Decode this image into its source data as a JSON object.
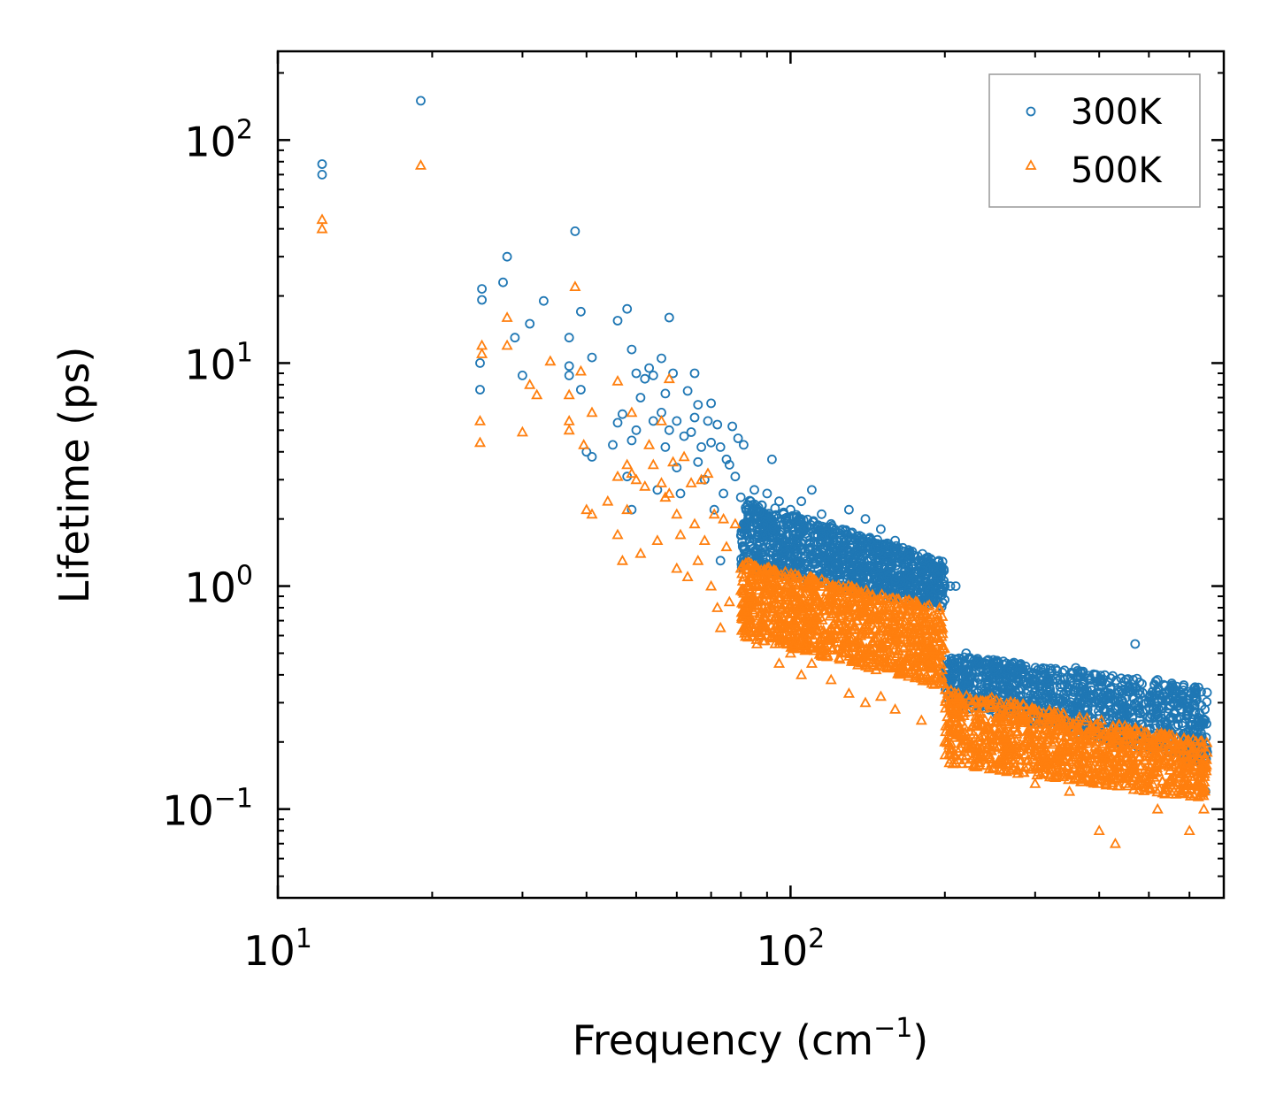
{
  "chart_data": {
    "type": "scatter",
    "title": "",
    "xlabel": "Frequency (cm",
    "xlabel_sup": "−1",
    "xlabel_close": ")",
    "ylabel": "Lifetime (ps)",
    "xscale": "log",
    "yscale": "log",
    "xlim": [
      10,
      700
    ],
    "ylim": [
      0.04,
      250
    ],
    "x_ticks": [
      {
        "value": 10,
        "base": "10",
        "exp": "1"
      },
      {
        "value": 100,
        "base": "10",
        "exp": "2"
      }
    ],
    "y_ticks": [
      {
        "value": 0.1,
        "base": "10",
        "exp": "−1"
      },
      {
        "value": 1,
        "base": "10",
        "exp": "0"
      },
      {
        "value": 10,
        "base": "10",
        "exp": "1"
      },
      {
        "value": 100,
        "base": "10",
        "exp": "2"
      }
    ],
    "legend_position": "top-right",
    "series": [
      {
        "name": "300K",
        "color": "#1f77b4",
        "marker": "circle",
        "points": [
          [
            12.2,
            78
          ],
          [
            12.2,
            70
          ],
          [
            19.0,
            150
          ],
          [
            25.0,
            21.5
          ],
          [
            25.0,
            19.2
          ],
          [
            24.8,
            10.0
          ],
          [
            24.8,
            7.6
          ],
          [
            28.0,
            30.0
          ],
          [
            27.5,
            23.0
          ],
          [
            29.0,
            13.0
          ],
          [
            30.0,
            8.8
          ],
          [
            31.0,
            15.0
          ],
          [
            33.0,
            19.0
          ],
          [
            37.0,
            13.0
          ],
          [
            37.0,
            9.7
          ],
          [
            37.0,
            8.8
          ],
          [
            38.0,
            39.0
          ],
          [
            39.0,
            17.0
          ],
          [
            39.0,
            7.6
          ],
          [
            40.0,
            4.0
          ],
          [
            41.0,
            3.8
          ],
          [
            41.0,
            10.6
          ],
          [
            45.0,
            4.3
          ],
          [
            46.0,
            15.5
          ],
          [
            46.0,
            5.4
          ],
          [
            47.0,
            5.9
          ],
          [
            48.0,
            17.5
          ],
          [
            48.0,
            3.1
          ],
          [
            49.0,
            11.5
          ],
          [
            49.0,
            2.2
          ],
          [
            49.0,
            4.5
          ],
          [
            50.0,
            5.0
          ],
          [
            50.0,
            9.0
          ],
          [
            51.0,
            7.0
          ],
          [
            52.0,
            8.5
          ],
          [
            53.0,
            9.5
          ],
          [
            54.0,
            8.8
          ],
          [
            54.0,
            5.5
          ],
          [
            55.0,
            2.7
          ],
          [
            56.0,
            10.5
          ],
          [
            56.0,
            6.0
          ],
          [
            57.0,
            7.3
          ],
          [
            57.0,
            4.2
          ],
          [
            58.0,
            16.0
          ],
          [
            58.0,
            5.0
          ],
          [
            59.0,
            9.0
          ],
          [
            60.0,
            5.5
          ],
          [
            60.0,
            3.4
          ],
          [
            61.0,
            2.6
          ],
          [
            62.0,
            4.7
          ],
          [
            63.0,
            7.5
          ],
          [
            64.0,
            4.9
          ],
          [
            65.0,
            9.0
          ],
          [
            65.0,
            5.7
          ],
          [
            66.0,
            6.5
          ],
          [
            66.0,
            3.6
          ],
          [
            67.0,
            4.2
          ],
          [
            68.0,
            3.0
          ],
          [
            69.0,
            5.5
          ],
          [
            70.0,
            6.6
          ],
          [
            70.0,
            4.4
          ],
          [
            71.0,
            2.2
          ],
          [
            72.0,
            5.3
          ],
          [
            73.0,
            1.3
          ],
          [
            73.0,
            4.2
          ],
          [
            74.0,
            2.6
          ],
          [
            75.0,
            3.7
          ],
          [
            76.0,
            3.5
          ],
          [
            77.0,
            5.2
          ],
          [
            78.0,
            3.1
          ],
          [
            79.0,
            4.6
          ],
          [
            80.0,
            2.5
          ],
          [
            81.0,
            4.3
          ],
          [
            83.0,
            2.0
          ],
          [
            85.0,
            2.7
          ],
          [
            86.0,
            1.9
          ],
          [
            88.0,
            2.3
          ],
          [
            90.0,
            2.6
          ],
          [
            92.0,
            3.7
          ],
          [
            95.0,
            2.4
          ],
          [
            100.0,
            2.2
          ],
          [
            105.0,
            2.4
          ],
          [
            110.0,
            2.7
          ],
          [
            115.0,
            2.1
          ],
          [
            120.0,
            1.9
          ],
          [
            130.0,
            2.2
          ],
          [
            140.0,
            2.0
          ],
          [
            150.0,
            1.8
          ],
          [
            160.0,
            1.6
          ],
          [
            170.0,
            1.4
          ],
          [
            180.0,
            1.3
          ],
          [
            190.0,
            1.2
          ],
          [
            200.0,
            1.0
          ],
          [
            205.0,
            1.0
          ],
          [
            210.0,
            1.0
          ],
          [
            220.0,
            0.5
          ],
          [
            250.0,
            0.42
          ],
          [
            300.0,
            0.35
          ],
          [
            360.0,
            0.43
          ],
          [
            400.0,
            0.3
          ],
          [
            470.0,
            0.55
          ],
          [
            520.0,
            0.38
          ],
          [
            560.0,
            0.3
          ],
          [
            600.0,
            0.28
          ],
          [
            640.0,
            0.25
          ],
          [
            645.0,
            0.12
          ]
        ],
        "bands": [
          {
            "x": [
              80,
              200
            ],
            "y_start": [
              2.5,
              1.3
            ],
            "y_end": [
              1.2,
              0.8
            ]
          },
          {
            "x": [
              200,
              650
            ],
            "y_start": [
              0.5,
              0.35
            ],
            "y_end": [
              0.3,
              0.16
            ]
          }
        ]
      },
      {
        "name": "500K",
        "color": "#ff7f0e",
        "marker": "triangle",
        "points": [
          [
            12.2,
            44
          ],
          [
            12.2,
            40
          ],
          [
            19.0,
            77
          ],
          [
            24.8,
            5.5
          ],
          [
            24.8,
            4.4
          ],
          [
            25.0,
            12.0
          ],
          [
            25.0,
            11.0
          ],
          [
            28.0,
            16.0
          ],
          [
            28.0,
            12.0
          ],
          [
            30.0,
            4.9
          ],
          [
            31.0,
            8.0
          ],
          [
            32.0,
            7.2
          ],
          [
            34.0,
            10.2
          ],
          [
            37.0,
            5.5
          ],
          [
            37.0,
            5.0
          ],
          [
            37.0,
            7.2
          ],
          [
            38.0,
            22.0
          ],
          [
            39.0,
            9.2
          ],
          [
            39.5,
            4.3
          ],
          [
            40.0,
            2.2
          ],
          [
            41.0,
            2.1
          ],
          [
            41.0,
            6.0
          ],
          [
            44.0,
            2.4
          ],
          [
            46.0,
            8.3
          ],
          [
            46.0,
            3.1
          ],
          [
            46.0,
            1.7
          ],
          [
            47.0,
            1.3
          ],
          [
            48.0,
            3.5
          ],
          [
            48.0,
            2.2
          ],
          [
            49.0,
            6.0
          ],
          [
            49.0,
            3.2
          ],
          [
            50.0,
            3.0
          ],
          [
            51.0,
            1.4
          ],
          [
            52.0,
            2.8
          ],
          [
            53.0,
            4.3
          ],
          [
            54.0,
            3.5
          ],
          [
            55.0,
            1.6
          ],
          [
            56.0,
            5.5
          ],
          [
            56.0,
            2.9
          ],
          [
            57.0,
            2.5
          ],
          [
            58.0,
            8.5
          ],
          [
            58.0,
            2.6
          ],
          [
            59.0,
            3.6
          ],
          [
            60.0,
            2.1
          ],
          [
            60.0,
            1.2
          ],
          [
            61.0,
            1.7
          ],
          [
            62.0,
            3.8
          ],
          [
            63.0,
            1.1
          ],
          [
            64.0,
            2.9
          ],
          [
            65.0,
            1.9
          ],
          [
            66.0,
            1.3
          ],
          [
            67.0,
            3.0
          ],
          [
            68.0,
            1.6
          ],
          [
            69.0,
            3.2
          ],
          [
            70.0,
            1.0
          ],
          [
            71.0,
            2.1
          ],
          [
            72.0,
            0.8
          ],
          [
            73.0,
            0.65
          ],
          [
            74.0,
            2.0
          ],
          [
            75.0,
            1.5
          ],
          [
            76.0,
            0.85
          ],
          [
            78.0,
            1.9
          ],
          [
            80.0,
            1.2
          ],
          [
            82.0,
            0.6
          ],
          [
            84.0,
            0.9
          ],
          [
            86.0,
            0.55
          ],
          [
            88.0,
            0.7
          ],
          [
            90.0,
            0.6
          ],
          [
            95.0,
            0.45
          ],
          [
            100.0,
            0.5
          ],
          [
            105.0,
            0.4
          ],
          [
            110.0,
            0.45
          ],
          [
            120.0,
            0.38
          ],
          [
            130.0,
            0.33
          ],
          [
            140.0,
            0.3
          ],
          [
            150.0,
            0.32
          ],
          [
            160.0,
            0.28
          ],
          [
            180.0,
            0.25
          ],
          [
            200.0,
            0.2
          ],
          [
            230.0,
            0.17
          ],
          [
            260.0,
            0.15
          ],
          [
            300.0,
            0.13
          ],
          [
            350.0,
            0.12
          ],
          [
            400.0,
            0.08
          ],
          [
            430.0,
            0.07
          ],
          [
            450.0,
            0.13
          ],
          [
            470.0,
            0.23
          ],
          [
            520.0,
            0.1
          ],
          [
            560.0,
            0.12
          ],
          [
            600.0,
            0.08
          ],
          [
            640.0,
            0.1
          ],
          [
            645.0,
            0.17
          ]
        ],
        "bands": [
          {
            "x": [
              80,
              200
            ],
            "y_start": [
              1.3,
              0.8
            ],
            "y_end": [
              0.6,
              0.35
            ]
          },
          {
            "x": [
              200,
              650
            ],
            "y_start": [
              0.35,
              0.2
            ],
            "y_end": [
              0.16,
              0.11
            ]
          }
        ]
      }
    ]
  }
}
